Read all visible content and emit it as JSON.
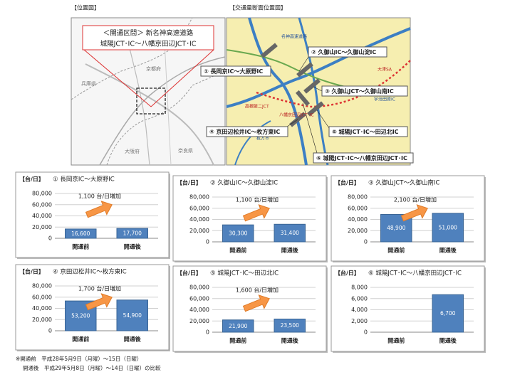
{
  "maps": {
    "location_label": "【位置図】",
    "section_label": "【交通量断面位置図】",
    "callout": [
      "＜開通区間＞ 新名神高速道路",
      "城陽JCT･IC～八幡京田辺JCT･IC"
    ],
    "places": [
      "京都府",
      "兵庫県",
      "大阪府",
      "奈良県"
    ],
    "map_labels": [
      "名神高速道路",
      "大津SA",
      "宇治田原IC",
      "高槻第二JCT",
      "八幡京田辺JCT･IC",
      "枚方市"
    ],
    "sections": [
      "① 長岡京IC～大原野IC",
      "② 久御山IC～久御山淀IC",
      "③ 久御山JCT～久御山南IC",
      "④ 京田辺松井IC～枚方東IC",
      "⑤ 城陽JCT･IC～田辺北IC",
      "⑥ 城陽JCT･IC～八幡京田辺JCT･IC"
    ]
  },
  "chart_data": [
    {
      "type": "bar",
      "unit": "【台/日】",
      "title": "① 長岡京IC～大原野IC",
      "categories": [
        "開通前",
        "開通後"
      ],
      "values": [
        16600,
        17700
      ],
      "value_labels": [
        "16,600",
        "17,700"
      ],
      "annotation": "1,100 台/日増加",
      "color": "#4f81bd",
      "grid": true,
      "ylim": [
        0,
        80000
      ],
      "yticks": [
        0,
        {
          "value": 20000,
          "label": "20,000"
        },
        {
          "value": 40000,
          "label": "40,000"
        },
        {
          "value": 60000,
          "label": "60,000"
        },
        {
          "value": 80000,
          "label": "80,000"
        }
      ]
    },
    {
      "type": "bar",
      "unit": "【台/日】",
      "title": "② 久御山IC～久御山淀IC",
      "categories": [
        "開通前",
        "開通後"
      ],
      "values": [
        30300,
        31400
      ],
      "value_labels": [
        "30,300",
        "31,400"
      ],
      "annotation": "1,100 台/日増加",
      "color": "#4f81bd",
      "grid": true,
      "ylim": [
        0,
        80000
      ],
      "yticks": [
        0,
        {
          "value": 20000,
          "label": "20,000"
        },
        {
          "value": 40000,
          "label": "40,000"
        },
        {
          "value": 60000,
          "label": "60,000"
        },
        {
          "value": 80000,
          "label": "80,000"
        }
      ]
    },
    {
      "type": "bar",
      "unit": "【台/日】",
      "title": "③ 久御山JCT～久御山南IC",
      "categories": [
        "開通前",
        "開通後"
      ],
      "values": [
        48900,
        51000
      ],
      "value_labels": [
        "48,900",
        "51,000"
      ],
      "annotation": "2,100 台/日増加",
      "color": "#4f81bd",
      "grid": true,
      "ylim": [
        0,
        80000
      ],
      "yticks": [
        0,
        {
          "value": 20000,
          "label": "20,000"
        },
        {
          "value": 40000,
          "label": "40,000"
        },
        {
          "value": 60000,
          "label": "60,000"
        },
        {
          "value": 80000,
          "label": "80,000"
        }
      ]
    },
    {
      "type": "bar",
      "unit": "【台/日】",
      "title": "④ 京田辺松井IC～枚方東IC",
      "categories": [
        "開通前",
        "開通後"
      ],
      "values": [
        53200,
        54900
      ],
      "value_labels": [
        "53,200",
        "54,900"
      ],
      "annotation": "1,700 台/日増加",
      "color": "#4f81bd",
      "grid": true,
      "ylim": [
        0,
        80000
      ],
      "yticks": [
        0,
        {
          "value": 20000,
          "label": "20,000"
        },
        {
          "value": 40000,
          "label": "40,000"
        },
        {
          "value": 60000,
          "label": "60,000"
        },
        {
          "value": 80000,
          "label": "80,000"
        }
      ]
    },
    {
      "type": "bar",
      "unit": "【台/日】",
      "title": "⑤ 城陽JCT･IC～田辺北IC",
      "categories": [
        "開通前",
        "開通後"
      ],
      "values": [
        21900,
        23500
      ],
      "value_labels": [
        "21,900",
        "23,500"
      ],
      "annotation": "1,600 台/日増加",
      "color": "#4f81bd",
      "grid": true,
      "ylim": [
        0,
        80000
      ],
      "yticks": [
        0,
        {
          "value": 20000,
          "label": "20,000"
        },
        {
          "value": 40000,
          "label": "40,000"
        },
        {
          "value": 60000,
          "label": "60,000"
        },
        {
          "value": 80000,
          "label": "80,000"
        }
      ]
    },
    {
      "type": "bar",
      "unit": "【台/日】",
      "title": "⑥ 城陽JCT･IC～八幡京田辺JCT･IC",
      "categories": [
        "開通前",
        "開通後"
      ],
      "values": [
        null,
        6700
      ],
      "value_labels": [
        null,
        "6,700"
      ],
      "color": "#4f81bd",
      "grid": true,
      "ylim": [
        0,
        8000
      ],
      "yticks": [
        0,
        {
          "value": 2000,
          "label": "2,000"
        },
        {
          "value": 4000,
          "label": "4,000"
        },
        {
          "value": 6000,
          "label": "6,000"
        },
        {
          "value": 8000,
          "label": "8,000"
        }
      ]
    }
  ],
  "notes": [
    "※開通前　平成28年5月9日（月曜）～15日（日曜）",
    "開通後　平成29年5月8日（月曜）～14日（日曜）の比較"
  ]
}
